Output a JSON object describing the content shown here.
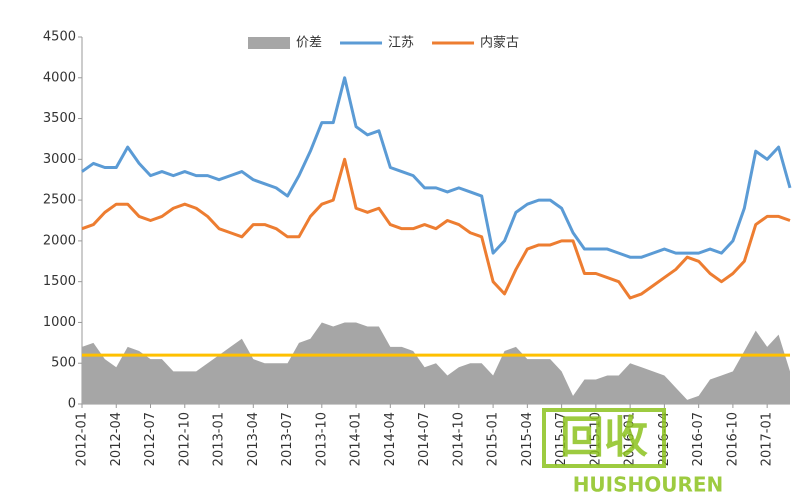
{
  "chart_data": {
    "type": "line",
    "categories": [
      "2012-01",
      null,
      null,
      "2012-04",
      null,
      null,
      "2012-07",
      null,
      null,
      "2012-10",
      null,
      null,
      "2013-01",
      null,
      null,
      "2013-04",
      null,
      null,
      "2013-07",
      null,
      null,
      "2013-10",
      null,
      null,
      "2014-01",
      null,
      null,
      "2014-04",
      null,
      null,
      "2014-07",
      null,
      null,
      "2014-10",
      null,
      null,
      "2015-01",
      null,
      null,
      "2015-04",
      null,
      null,
      "2015-07",
      null,
      null,
      "2015-10",
      null,
      null,
      "2016-01",
      null,
      null,
      "2016-04",
      null,
      null,
      "2016-07",
      null,
      null,
      "2016-10",
      null,
      null,
      "2017-01",
      null,
      null
    ],
    "series": [
      {
        "name": "价差",
        "kind": "area",
        "color": "#a6a6a6",
        "values": [
          700,
          750,
          550,
          450,
          700,
          650,
          550,
          550,
          400,
          400,
          400,
          500,
          600,
          700,
          800,
          550,
          500,
          500,
          500,
          750,
          800,
          1000,
          950,
          1000,
          1000,
          950,
          950,
          700,
          700,
          650,
          450,
          500,
          350,
          450,
          500,
          500,
          350,
          650,
          700,
          550,
          550,
          550,
          400,
          100,
          300,
          300,
          350,
          350,
          500,
          450,
          400,
          350,
          200,
          50,
          100,
          300,
          350,
          400,
          650,
          900,
          700,
          850,
          400
        ]
      },
      {
        "name": "江苏",
        "kind": "line",
        "color": "#5b9bd5",
        "values": [
          2850,
          2950,
          2900,
          2900,
          3150,
          2950,
          2800,
          2850,
          2800,
          2850,
          2800,
          2800,
          2750,
          2800,
          2850,
          2750,
          2700,
          2650,
          2550,
          2800,
          3100,
          3450,
          3450,
          4000,
          3400,
          3300,
          3350,
          2900,
          2850,
          2800,
          2650,
          2650,
          2600,
          2650,
          2600,
          2550,
          1850,
          2000,
          2350,
          2450,
          2500,
          2500,
          2400,
          2100,
          1900,
          1900,
          1900,
          1850,
          1800,
          1800,
          1850,
          1900,
          1850,
          1850,
          1850,
          1900,
          1850,
          2000,
          2400,
          3100,
          3000,
          3150,
          2650
        ]
      },
      {
        "name": "内蒙古",
        "kind": "line",
        "color": "#ed7d31",
        "values": [
          2150,
          2200,
          2350,
          2450,
          2450,
          2300,
          2250,
          2300,
          2400,
          2450,
          2400,
          2300,
          2150,
          2100,
          2050,
          2200,
          2200,
          2150,
          2050,
          2050,
          2300,
          2450,
          2500,
          3000,
          2400,
          2350,
          2400,
          2200,
          2150,
          2150,
          2200,
          2150,
          2250,
          2200,
          2100,
          2050,
          1500,
          1350,
          1650,
          1900,
          1950,
          1950,
          2000,
          2000,
          1600,
          1600,
          1550,
          1500,
          1300,
          1350,
          1450,
          1550,
          1650,
          1800,
          1750,
          1600,
          1500,
          1600,
          1750,
          2200,
          2300,
          2300,
          2250
        ]
      }
    ],
    "reference_line": {
      "value": 600,
      "color": "#ffc000"
    },
    "ylim": [
      0,
      4500
    ],
    "yticks": [
      0,
      500,
      1000,
      1500,
      2000,
      2500,
      3000,
      3500,
      4000,
      4500
    ],
    "grid": false,
    "legend": "top",
    "watermark": {
      "text": "回收",
      "subtext": "HUISHOUREN",
      "color": "#8dc21f"
    }
  }
}
